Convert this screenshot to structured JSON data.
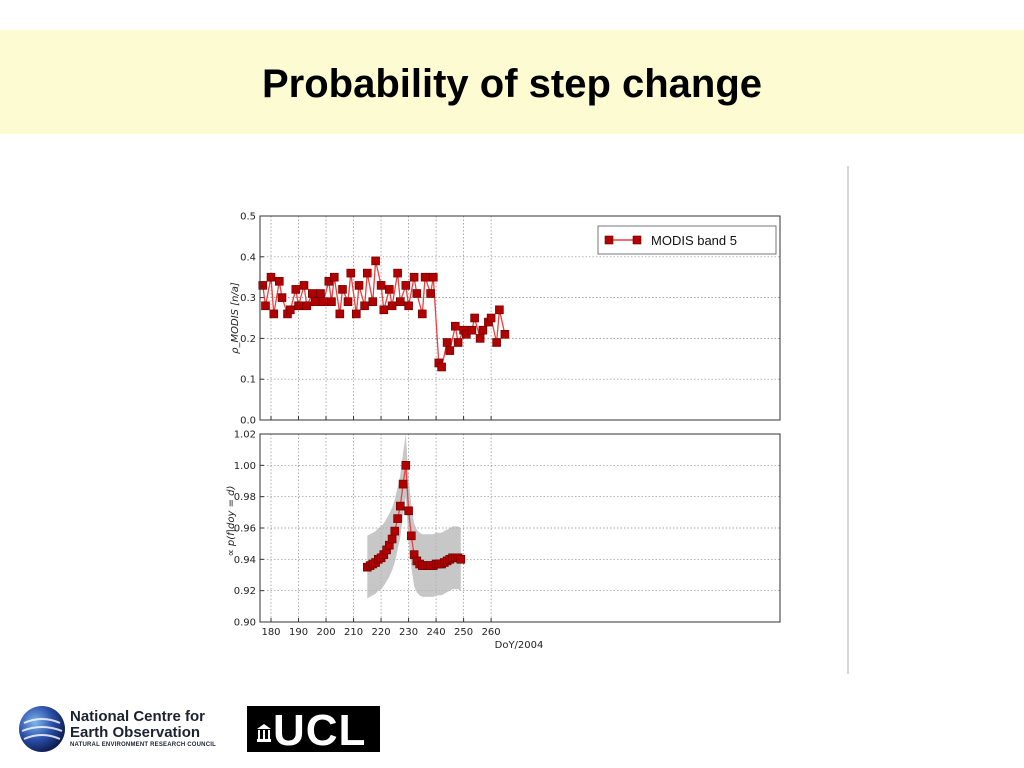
{
  "slide": {
    "title": "Probability of step change"
  },
  "colors": {
    "title_band": "#fdfbd2",
    "series": "#b00000",
    "line": "#e94040",
    "band": "#b4b4b4"
  },
  "logos": {
    "nceo_line1": "National Centre for",
    "nceo_line2": "Earth Observation",
    "nceo_line3": "NATURAL ENVIRONMENT RESEARCH COUNCIL",
    "ucl_text": "UCL"
  },
  "chart_data": [
    {
      "type": "line",
      "xlabel": "",
      "ylabel": "ρ_MODIS [n/a]",
      "xlim": [
        176,
        365
      ],
      "ylim": [
        0.0,
        0.5
      ],
      "yticks": [
        0.0,
        0.1,
        0.2,
        0.3,
        0.4,
        0.5
      ],
      "ytick_labels": [
        "0.0",
        "0.1",
        "0.2",
        "0.3",
        "0.4",
        "0.5"
      ],
      "grid": true,
      "legend": {
        "position": "top-right",
        "entries": [
          "MODIS band 5"
        ]
      },
      "series": [
        {
          "name": "MODIS band 5",
          "x": [
            177,
            178,
            180,
            181,
            183,
            184,
            186,
            187,
            189,
            190,
            192,
            193,
            195,
            196,
            198,
            199,
            201,
            202,
            203,
            205,
            206,
            208,
            209,
            211,
            212,
            214,
            215,
            217,
            218,
            220,
            221,
            223,
            224,
            226,
            227,
            229,
            230,
            232,
            233,
            235,
            236,
            238,
            239,
            241,
            242,
            244,
            245,
            247,
            248,
            250,
            251,
            253,
            254,
            256,
            257,
            259,
            260,
            262,
            263,
            265
          ],
          "y": [
            0.33,
            0.28,
            0.35,
            0.26,
            0.34,
            0.3,
            0.26,
            0.27,
            0.32,
            0.28,
            0.33,
            0.28,
            0.31,
            0.29,
            0.31,
            0.29,
            0.34,
            0.29,
            0.35,
            0.26,
            0.32,
            0.29,
            0.36,
            0.26,
            0.33,
            0.28,
            0.36,
            0.29,
            0.39,
            0.33,
            0.27,
            0.32,
            0.28,
            0.36,
            0.29,
            0.33,
            0.28,
            0.35,
            0.31,
            0.26,
            0.35,
            0.31,
            0.35,
            0.14,
            0.13,
            0.19,
            0.17,
            0.23,
            0.19,
            0.22,
            0.21,
            0.22,
            0.25,
            0.2,
            0.22,
            0.24,
            0.25,
            0.19,
            0.27,
            0.21
          ]
        }
      ]
    },
    {
      "type": "line",
      "xlabel": "DoY/2004",
      "ylabel": "∝ p(f|doy = d)",
      "xlim": [
        176,
        365
      ],
      "ylim": [
        0.9,
        1.02
      ],
      "xticks": [
        180,
        190,
        200,
        210,
        220,
        230,
        240,
        250,
        260
      ],
      "xtick_labels": [
        "180",
        "190",
        "200",
        "210",
        "220",
        "230",
        "240",
        "250",
        "260"
      ],
      "yticks": [
        0.9,
        0.92,
        0.94,
        0.96,
        0.98,
        1.0,
        1.02
      ],
      "ytick_labels": [
        "0.90",
        "0.92",
        "0.94",
        "0.96",
        "0.98",
        "1.00",
        "1.02"
      ],
      "grid": true,
      "series": [
        {
          "name": "",
          "x": [
            215,
            216,
            217,
            218,
            219,
            220,
            221,
            222,
            223,
            224,
            225,
            226,
            227,
            228,
            229,
            230,
            231,
            232,
            233,
            234,
            235,
            236,
            237,
            238,
            239,
            240,
            241,
            242,
            243,
            244,
            245,
            246,
            247,
            248,
            249
          ],
          "y": [
            0.935,
            0.936,
            0.937,
            0.938,
            0.94,
            0.941,
            0.943,
            0.946,
            0.949,
            0.953,
            0.958,
            0.966,
            0.974,
            0.988,
            1.0,
            0.971,
            0.955,
            0.943,
            0.939,
            0.937,
            0.936,
            0.936,
            0.936,
            0.936,
            0.936,
            0.937,
            0.937,
            0.937,
            0.938,
            0.939,
            0.94,
            0.941,
            0.941,
            0.941,
            0.94
          ],
          "band_lower": [
            0.915,
            0.916,
            0.917,
            0.918,
            0.92,
            0.921,
            0.923,
            0.926,
            0.929,
            0.933,
            0.938,
            0.946,
            0.954,
            0.968,
            0.98,
            0.951,
            0.935,
            0.923,
            0.919,
            0.917,
            0.916,
            0.916,
            0.916,
            0.916,
            0.916,
            0.917,
            0.917,
            0.917,
            0.918,
            0.919,
            0.92,
            0.921,
            0.921,
            0.921,
            0.92
          ],
          "band_upper": [
            0.955,
            0.956,
            0.957,
            0.958,
            0.96,
            0.961,
            0.963,
            0.966,
            0.969,
            0.973,
            0.978,
            0.986,
            0.994,
            1.008,
            1.02,
            0.991,
            0.975,
            0.963,
            0.959,
            0.957,
            0.956,
            0.956,
            0.956,
            0.956,
            0.956,
            0.957,
            0.957,
            0.957,
            0.958,
            0.959,
            0.96,
            0.961,
            0.961,
            0.961,
            0.96
          ]
        }
      ]
    }
  ]
}
